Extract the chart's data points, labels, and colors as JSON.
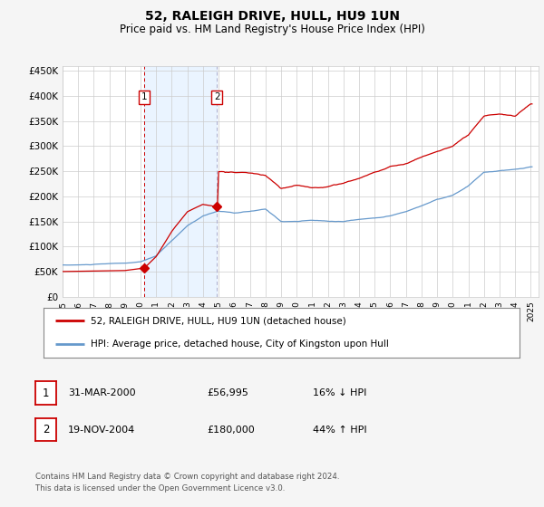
{
  "title": "52, RALEIGH DRIVE, HULL, HU9 1UN",
  "subtitle": "Price paid vs. HM Land Registry's House Price Index (HPI)",
  "ylim": [
    0,
    460000
  ],
  "yticks": [
    0,
    50000,
    100000,
    150000,
    200000,
    250000,
    300000,
    350000,
    400000,
    450000
  ],
  "ytick_labels": [
    "£0",
    "£50K",
    "£100K",
    "£150K",
    "£200K",
    "£250K",
    "£300K",
    "£350K",
    "£400K",
    "£450K"
  ],
  "x_start_year": 1995,
  "x_end_year": 2025,
  "transaction1_date": 2000.25,
  "transaction1_price": 56995,
  "transaction1_label": "1",
  "transaction2_date": 2004.9,
  "transaction2_price": 180000,
  "transaction2_label": "2",
  "legend1": "52, RALEIGH DRIVE, HULL, HU9 1UN (detached house)",
  "legend2": "HPI: Average price, detached house, City of Kingston upon Hull",
  "table_row1_num": "1",
  "table_row1_date": "31-MAR-2000",
  "table_row1_price": "£56,995",
  "table_row1_hpi": "16% ↓ HPI",
  "table_row2_num": "2",
  "table_row2_date": "19-NOV-2004",
  "table_row2_price": "£180,000",
  "table_row2_hpi": "44% ↑ HPI",
  "footnote": "Contains HM Land Registry data © Crown copyright and database right 2024.\nThis data is licensed under the Open Government Licence v3.0.",
  "red_line_color": "#cc0000",
  "blue_line_color": "#6699cc",
  "bg_color": "#f5f5f5",
  "plot_bg_color": "#ffffff",
  "grid_color": "#cccccc",
  "shade_color": "#ddeeff",
  "title_fontsize": 10,
  "subtitle_fontsize": 8.5,
  "tick_fontsize": 7.5,
  "hpi_keypoints": [
    [
      1995.0,
      63000
    ],
    [
      1996.0,
      63000
    ],
    [
      1997.0,
      64000
    ],
    [
      1998.0,
      65000
    ],
    [
      1999.0,
      66000
    ],
    [
      2000.0,
      68000
    ],
    [
      2001.0,
      80000
    ],
    [
      2002.0,
      110000
    ],
    [
      2003.0,
      140000
    ],
    [
      2004.0,
      160000
    ],
    [
      2005.0,
      170000
    ],
    [
      2006.0,
      165000
    ],
    [
      2007.0,
      168000
    ],
    [
      2008.0,
      172000
    ],
    [
      2009.0,
      148000
    ],
    [
      2010.0,
      148000
    ],
    [
      2011.0,
      150000
    ],
    [
      2012.0,
      148000
    ],
    [
      2013.0,
      148000
    ],
    [
      2014.0,
      152000
    ],
    [
      2015.0,
      155000
    ],
    [
      2016.0,
      160000
    ],
    [
      2017.0,
      168000
    ],
    [
      2018.0,
      180000
    ],
    [
      2019.0,
      192000
    ],
    [
      2020.0,
      200000
    ],
    [
      2021.0,
      218000
    ],
    [
      2022.0,
      245000
    ],
    [
      2023.0,
      248000
    ],
    [
      2024.0,
      250000
    ],
    [
      2025.0,
      255000
    ]
  ],
  "prop_keypoints": [
    [
      1995.0,
      50000
    ],
    [
      1996.0,
      50500
    ],
    [
      1997.0,
      51000
    ],
    [
      1998.0,
      51500
    ],
    [
      1999.0,
      52000
    ],
    [
      2000.25,
      56995
    ],
    [
      2001.0,
      80000
    ],
    [
      2002.0,
      130000
    ],
    [
      2003.0,
      170000
    ],
    [
      2004.0,
      185000
    ],
    [
      2004.9,
      180000
    ],
    [
      2005.0,
      250000
    ],
    [
      2006.0,
      250000
    ],
    [
      2007.0,
      248000
    ],
    [
      2008.0,
      242000
    ],
    [
      2009.0,
      215000
    ],
    [
      2010.0,
      220000
    ],
    [
      2011.0,
      215000
    ],
    [
      2012.0,
      218000
    ],
    [
      2013.0,
      225000
    ],
    [
      2014.0,
      235000
    ],
    [
      2015.0,
      248000
    ],
    [
      2016.0,
      258000
    ],
    [
      2017.0,
      265000
    ],
    [
      2018.0,
      278000
    ],
    [
      2019.0,
      290000
    ],
    [
      2020.0,
      300000
    ],
    [
      2021.0,
      320000
    ],
    [
      2022.0,
      355000
    ],
    [
      2023.0,
      360000
    ],
    [
      2024.0,
      355000
    ],
    [
      2025.0,
      380000
    ]
  ]
}
